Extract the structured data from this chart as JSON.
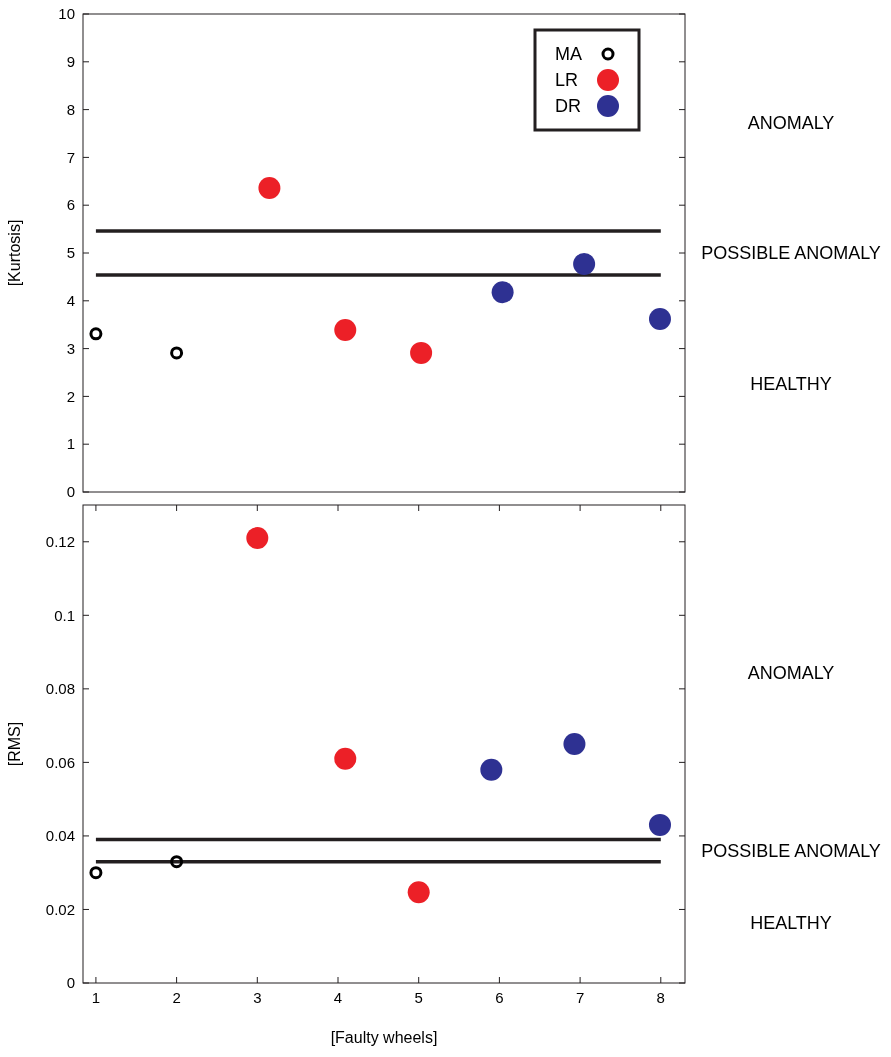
{
  "chart_data": [
    {
      "type": "scatter",
      "ylabel": "[Kurtosis]",
      "xlim": [
        0.84,
        8.3
      ],
      "ylim": [
        0,
        10
      ],
      "yticks": [
        0,
        1,
        2,
        3,
        4,
        5,
        6,
        7,
        8,
        9,
        10
      ],
      "tick_labels": "y",
      "legend": "top right",
      "marker": "circle",
      "grid": false,
      "series": [
        {
          "name": "MA",
          "color": "#000000",
          "marker": "circle",
          "x": [
            1,
            2
          ],
          "values": [
            3.31,
            2.91
          ]
        },
        {
          "name": "LR",
          "color": "#ec2027",
          "x": [
            3.15,
            4.09,
            5.03
          ],
          "values": [
            6.36,
            3.39,
            2.91
          ]
        },
        {
          "name": "DR",
          "color": "#2e3192",
          "x": [
            6.04,
            7.05,
            7.99
          ],
          "values": [
            4.18,
            4.77,
            3.62
          ]
        }
      ],
      "ref_lines": [
        {
          "axis": "y",
          "value": 5.46,
          "color": "#231f20"
        },
        {
          "axis": "y",
          "value": 4.54,
          "color": "#231f20"
        }
      ],
      "annotations": [
        "ANOMALY",
        "POSSIBLE ANOMALY",
        "HEALTHY"
      ]
    },
    {
      "type": "scatter",
      "xlabel": "[Faulty wheels]",
      "ylabel": "[RMS]",
      "xlim": [
        0.84,
        8.3
      ],
      "xticks": [
        1,
        2,
        3,
        4,
        5,
        6,
        7,
        8
      ],
      "ylim": [
        0,
        0.13
      ],
      "yticks": [
        0,
        0.02,
        0.04,
        0.06,
        0.08,
        0.1,
        0.12
      ],
      "marker": "circle",
      "grid": false,
      "series": [
        {
          "color": "#000000",
          "marker": "circle",
          "x": [
            1,
            2
          ],
          "values": [
            0.03,
            0.033
          ]
        },
        {
          "color": "#ec2027",
          "x": [
            3,
            4.09,
            5
          ],
          "values": [
            0.121,
            0.061,
            0.0247
          ]
        },
        {
          "color": "#2e3192",
          "x": [
            5.9,
            6.93,
            7.99
          ],
          "values": [
            0.058,
            0.065,
            0.043
          ]
        }
      ],
      "ref_lines": [
        {
          "axis": "y",
          "value": 0.039,
          "color": "#231f20"
        },
        {
          "axis": "y",
          "value": 0.033,
          "color": "#231f20"
        }
      ],
      "annotations": [
        "ANOMALY",
        "POSSIBLE ANOMALY",
        "HEALTHY"
      ]
    }
  ]
}
